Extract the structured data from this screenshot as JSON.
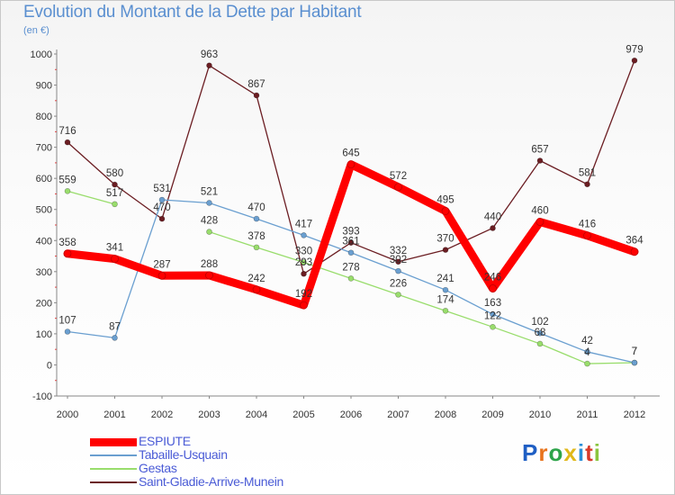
{
  "title": "Evolution du Montant de la Dette par Habitant",
  "subtitle": "(en €)",
  "logo": {
    "letters": [
      "P",
      "r",
      "o",
      "x",
      "i",
      "t",
      "i"
    ],
    "colors": [
      "#1f5fc4",
      "#e8731c",
      "#2ea44a",
      "#e0b81a",
      "#2a8fd8",
      "#d83a2a",
      "#8ac53e"
    ]
  },
  "chart_data": {
    "type": "line",
    "title": "Evolution du Montant de la Dette par Habitant",
    "ylabel": "(en €)",
    "x": [
      "2000",
      "2001",
      "2002",
      "2003",
      "2004",
      "2005",
      "2006",
      "2007",
      "2008",
      "2009",
      "2010",
      "2011",
      "2012"
    ],
    "ylim": [
      -100,
      1000
    ],
    "yticks": [
      -100,
      0,
      100,
      200,
      300,
      400,
      500,
      600,
      700,
      800,
      900,
      1000
    ],
    "grid": false,
    "legend": "bottom-left",
    "series": [
      {
        "name": "Saint-Gladie-Arrive-Munein",
        "color": "#6b1d22",
        "width": 1.3,
        "marker": 5,
        "values": [
          716,
          580,
          470,
          963,
          867,
          293,
          393,
          332,
          370,
          440,
          657,
          581,
          979
        ],
        "labels": [
          "716",
          "580",
          "470",
          "963",
          "867",
          "293",
          "393",
          "332",
          "370",
          "440",
          "657",
          "581",
          "979"
        ]
      },
      {
        "name": "Gestas",
        "color": "#99dd6c",
        "width": 1.3,
        "marker": 5,
        "values": [
          559,
          517,
          null,
          428,
          378,
          330,
          278,
          226,
          174,
          122,
          68,
          4,
          7
        ],
        "labels": [
          "559",
          "517",
          "",
          "428",
          "378",
          "330",
          "278",
          "226",
          "174",
          "122",
          "68",
          "4",
          "7"
        ]
      },
      {
        "name": "Tabaille-Usquain",
        "color": "#6a9fd0",
        "width": 1.3,
        "marker": 5,
        "values": [
          107,
          87,
          531,
          521,
          470,
          417,
          361,
          302,
          241,
          163,
          102,
          42,
          7
        ],
        "labels": [
          "107",
          "87",
          "531",
          "521",
          "470",
          "417",
          "361",
          "302",
          "241",
          "163",
          "102",
          "42",
          "7"
        ]
      },
      {
        "name": "ESPIUTE",
        "color": "#ff0000",
        "width": 9,
        "marker": 7,
        "values": [
          358,
          341,
          287,
          288,
          242,
          192,
          645,
          572,
          495,
          246,
          460,
          416,
          364
        ],
        "labels": [
          "358",
          "341",
          "287",
          "288",
          "242",
          "192",
          "645",
          "572",
          "495",
          "246",
          "460",
          "416",
          "364"
        ]
      }
    ],
    "legend_order": [
      "ESPIUTE",
      "Tabaille-Usquain",
      "Gestas",
      "Saint-Gladie-Arrive-Munein"
    ]
  }
}
